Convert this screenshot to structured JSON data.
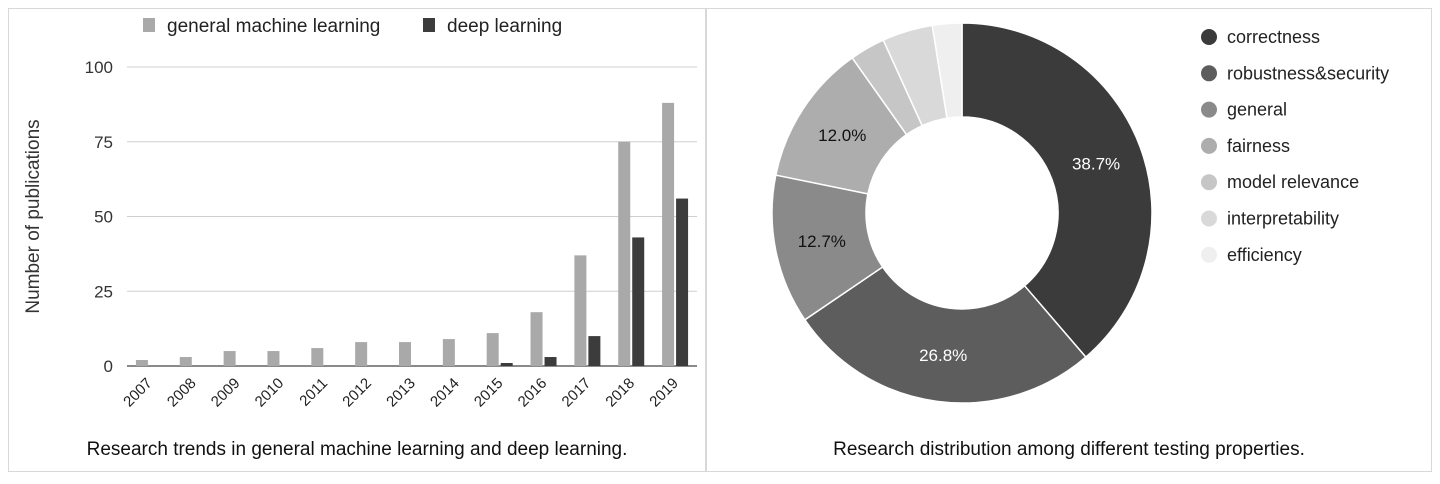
{
  "chart_data": [
    {
      "type": "bar",
      "categories": [
        "2007",
        "2008",
        "2009",
        "2010",
        "2011",
        "2012",
        "2013",
        "2014",
        "2015",
        "2016",
        "2017",
        "2018",
        "2019"
      ],
      "series": [
        {
          "name": "general machine learning",
          "color": "#a9a9a9",
          "values": [
            2,
            3,
            5,
            5,
            6,
            8,
            8,
            9,
            11,
            18,
            37,
            75,
            88
          ]
        },
        {
          "name": "deep learning",
          "color": "#3c3c3c",
          "values": [
            0,
            0,
            0,
            0,
            0,
            0,
            0,
            0,
            1,
            3,
            10,
            43,
            56
          ]
        }
      ],
      "title": "",
      "xlabel": "",
      "ylabel": "Number of publications",
      "ylim": [
        0,
        100
      ],
      "yticks": [
        0,
        25,
        50,
        75,
        100
      ],
      "grid": true,
      "legend_position": "top",
      "caption": "Research trends in general machine learning and deep learning."
    },
    {
      "type": "pie",
      "donut": true,
      "categories": [
        "correctness",
        "robustness&security",
        "general",
        "fairness",
        "model relevance",
        "interpretability",
        "efficiency"
      ],
      "values": [
        38.7,
        26.8,
        12.7,
        12.0,
        3.0,
        4.3,
        2.5
      ],
      "labels": [
        "38.7%",
        "26.8%",
        "12.7%",
        "12.0%",
        "",
        "",
        ""
      ],
      "colors": [
        "#3b3b3b",
        "#5d5d5d",
        "#8a8a8a",
        "#adadad",
        "#c6c6c6",
        "#d9d9d9",
        "#efefef"
      ],
      "label_colors": [
        "#ffffff",
        "#ffffff",
        "#111111",
        "#111111",
        "#111111",
        "#111111",
        "#111111"
      ],
      "legend_position": "right",
      "caption": "Research distribution among different testing properties."
    }
  ]
}
